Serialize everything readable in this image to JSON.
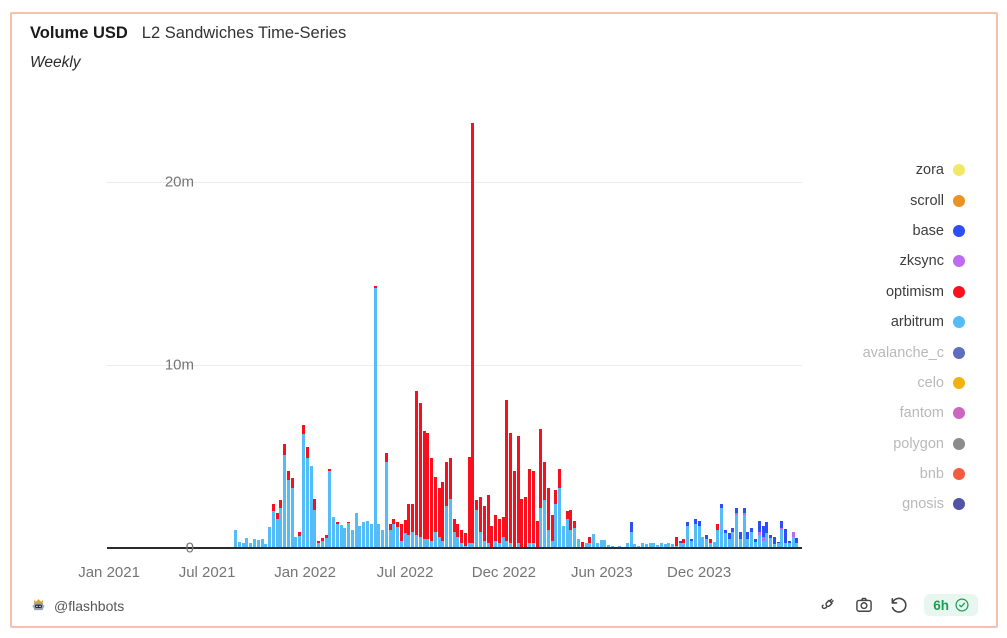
{
  "card": {
    "title_metric": "Volume USD",
    "title": "L2 Sandwiches Time-Series",
    "subtitle": "Weekly",
    "border_color": "#f8bfae"
  },
  "footer": {
    "author": "@flashbots",
    "badge_label": "6h",
    "badge_color": "#1f9d55",
    "badge_bg": "#e7f6ee",
    "tool_icons": [
      "plug-icon",
      "camera-icon",
      "history-icon"
    ]
  },
  "legend": {
    "position": "right",
    "items": [
      {
        "label": "zora",
        "color": "#f2e866",
        "active": true
      },
      {
        "label": "scroll",
        "color": "#eb9226",
        "active": true
      },
      {
        "label": "base",
        "color": "#2d4ef5",
        "active": true
      },
      {
        "label": "zksync",
        "color": "#bd6cf0",
        "active": true
      },
      {
        "label": "optimism",
        "color": "#f8101f",
        "active": true
      },
      {
        "label": "arbitrum",
        "color": "#54bdf7",
        "active": true
      },
      {
        "label": "avalanche_c",
        "color": "#5f6dbe",
        "active": false
      },
      {
        "label": "celo",
        "color": "#eeb30c",
        "active": false
      },
      {
        "label": "fantom",
        "color": "#cb67c0",
        "active": false
      },
      {
        "label": "polygon",
        "color": "#8c8c8c",
        "active": false
      },
      {
        "label": "bnb",
        "color": "#f25b40",
        "active": false
      },
      {
        "label": "gnosis",
        "color": "#5054a5",
        "active": false
      }
    ]
  },
  "chart_data": {
    "type": "bar",
    "stacked": true,
    "title": "Volume USD L2 Sandwiches Time-Series",
    "granularity": "Weekly",
    "y_unit": "USD millions",
    "ylim": [
      0,
      23.8
    ],
    "grid": "horizontal",
    "legend_position": "right",
    "y_ticks": [
      {
        "label": "0",
        "value": 0
      },
      {
        "label": "10m",
        "value": 10
      },
      {
        "label": "20m",
        "value": 20
      }
    ],
    "x_ticks": [
      {
        "label": "Jan 2021",
        "pos": 0.003
      },
      {
        "label": "Jul 2021",
        "pos": 0.144
      },
      {
        "label": "Jan 2022",
        "pos": 0.285
      },
      {
        "label": "Jul 2022",
        "pos": 0.429
      },
      {
        "label": "Dec 2022",
        "pos": 0.571
      },
      {
        "label": "Jun 2023",
        "pos": 0.712
      },
      {
        "label": "Dec 2023",
        "pos": 0.852
      }
    ],
    "first_bar_pos": 0.183,
    "bar_step": 0.00542,
    "series_order": [
      "arbitrum",
      "optimism",
      "zksync",
      "base"
    ],
    "series_colors": {
      "arbitrum": "#54bdf7",
      "optimism": "#f8101f",
      "zksync": "#bd6cf0",
      "base": "#2d4ef5"
    },
    "weeks_note": "weekly stacked volumes in USD millions, order [arbitrum, optimism, zksync, base]",
    "weeks": [
      [
        1.0,
        0,
        0,
        0
      ],
      [
        0.35,
        0,
        0,
        0
      ],
      [
        0.3,
        0,
        0,
        0
      ],
      [
        0.55,
        0,
        0,
        0
      ],
      [
        0.25,
        0,
        0,
        0
      ],
      [
        0.5,
        0,
        0,
        0
      ],
      [
        0.45,
        0,
        0,
        0
      ],
      [
        0.5,
        0,
        0,
        0
      ],
      [
        0.2,
        0,
        0,
        0
      ],
      [
        1.15,
        0,
        0,
        0
      ],
      [
        2.0,
        0.4,
        0,
        0
      ],
      [
        1.6,
        0.3,
        0,
        0
      ],
      [
        2.2,
        0.4,
        0,
        0
      ],
      [
        5.1,
        0.6,
        0,
        0
      ],
      [
        3.7,
        0.5,
        0,
        0
      ],
      [
        3.3,
        0.5,
        0,
        0
      ],
      [
        0.6,
        0,
        0,
        0
      ],
      [
        0.65,
        0.25,
        0,
        0
      ],
      [
        6.25,
        0.45,
        0,
        0
      ],
      [
        4.9,
        0.6,
        0,
        0
      ],
      [
        4.5,
        0,
        0,
        0
      ],
      [
        2.1,
        0.6,
        0,
        0
      ],
      [
        0.25,
        0.15,
        0,
        0
      ],
      [
        0.4,
        0.15,
        0,
        0
      ],
      [
        0.55,
        0.15,
        0,
        0
      ],
      [
        4.2,
        0.1,
        0,
        0
      ],
      [
        1.7,
        0,
        0,
        0
      ],
      [
        1.3,
        0.15,
        0,
        0
      ],
      [
        1.25,
        0,
        0,
        0
      ],
      [
        1.1,
        0,
        0,
        0
      ],
      [
        1.35,
        0.05,
        0,
        0
      ],
      [
        1.0,
        0,
        0,
        0
      ],
      [
        1.9,
        0,
        0,
        0
      ],
      [
        1.2,
        0,
        0,
        0
      ],
      [
        1.4,
        0,
        0,
        0
      ],
      [
        1.5,
        0,
        0,
        0
      ],
      [
        1.3,
        0,
        0,
        0
      ],
      [
        14.2,
        0.1,
        0,
        0
      ],
      [
        1.3,
        0,
        0,
        0
      ],
      [
        1.0,
        0,
        0,
        0
      ],
      [
        4.7,
        0.5,
        0,
        0
      ],
      [
        1.0,
        0.3,
        0,
        0
      ],
      [
        1.3,
        0.3,
        0,
        0
      ],
      [
        1.15,
        0.25,
        0,
        0
      ],
      [
        0.4,
        0.9,
        0,
        0
      ],
      [
        0.8,
        0.75,
        0,
        0
      ],
      [
        0.7,
        1.7,
        0,
        0
      ],
      [
        0.9,
        1.5,
        0,
        0
      ],
      [
        0.7,
        7.9,
        0,
        0
      ],
      [
        0.6,
        7.3,
        0,
        0
      ],
      [
        0.5,
        5.9,
        0,
        0
      ],
      [
        0.5,
        5.8,
        0,
        0
      ],
      [
        0.4,
        4.5,
        0,
        0
      ],
      [
        0.9,
        3.0,
        0,
        0
      ],
      [
        0.6,
        2.7,
        0,
        0
      ],
      [
        0.4,
        3.2,
        0,
        0
      ],
      [
        2.3,
        2.4,
        0,
        0
      ],
      [
        2.7,
        2.2,
        0,
        0
      ],
      [
        0.9,
        0.7,
        0,
        0
      ],
      [
        0.6,
        0.7,
        0,
        0
      ],
      [
        0.3,
        0.7,
        0,
        0
      ],
      [
        0.1,
        0.7,
        0,
        0
      ],
      [
        0.3,
        4.7,
        0,
        0
      ],
      [
        0.3,
        22.9,
        0,
        0
      ],
      [
        2.1,
        0.5,
        0,
        0
      ],
      [
        0.9,
        1.9,
        0,
        0
      ],
      [
        0.4,
        1.9,
        0,
        0
      ],
      [
        0.3,
        2.6,
        0,
        0
      ],
      [
        0.05,
        1.15,
        0,
        0
      ],
      [
        0.4,
        1.4,
        0,
        0
      ],
      [
        0.3,
        1.3,
        0,
        0
      ],
      [
        0.6,
        1.1,
        0,
        0
      ],
      [
        0.4,
        7.7,
        0,
        0
      ],
      [
        0.3,
        6.0,
        0,
        0
      ],
      [
        0,
        4.2,
        0,
        0
      ],
      [
        0.3,
        5.8,
        0,
        0
      ],
      [
        0,
        2.7,
        0,
        0
      ],
      [
        0,
        2.8,
        0,
        0
      ],
      [
        0.3,
        4.0,
        0,
        0
      ],
      [
        0.3,
        3.9,
        0,
        0
      ],
      [
        0,
        1.5,
        0,
        0
      ],
      [
        2.2,
        4.3,
        0,
        0
      ],
      [
        2.6,
        2.1,
        0,
        0
      ],
      [
        1.0,
        2.3,
        0,
        0
      ],
      [
        0.4,
        1.4,
        0,
        0
      ],
      [
        2.4,
        0.8,
        0,
        0
      ],
      [
        3.3,
        1.0,
        0,
        0
      ],
      [
        1.2,
        0,
        0,
        0
      ],
      [
        1.6,
        0.4,
        0,
        0
      ],
      [
        1.0,
        1.1,
        0,
        0
      ],
      [
        1.1,
        0.4,
        0,
        0
      ],
      [
        0.5,
        0,
        0,
        0
      ],
      [
        0,
        0.35,
        0,
        0
      ],
      [
        0.3,
        0,
        0,
        0
      ],
      [
        0.3,
        0.3,
        0,
        0
      ],
      [
        0.75,
        0,
        0,
        0
      ],
      [
        0.3,
        0,
        0,
        0
      ],
      [
        0.45,
        0,
        0,
        0
      ],
      [
        0.45,
        0,
        0,
        0
      ],
      [
        0.15,
        0,
        0,
        0
      ],
      [
        0.1,
        0,
        0,
        0
      ],
      [
        0,
        0,
        0,
        0
      ],
      [
        0.1,
        0,
        0,
        0
      ],
      [
        0.05,
        0,
        0,
        0
      ],
      [
        0.3,
        0,
        0,
        0
      ],
      [
        0.9,
        0,
        0,
        0.5
      ],
      [
        0.2,
        0,
        0,
        0
      ],
      [
        0.1,
        0,
        0,
        0
      ],
      [
        0.25,
        0,
        0,
        0.05
      ],
      [
        0.2,
        0,
        0,
        0
      ],
      [
        0.25,
        0,
        0,
        0
      ],
      [
        0.3,
        0,
        0,
        0
      ],
      [
        0.15,
        0,
        0,
        0
      ],
      [
        0.3,
        0,
        0,
        0
      ],
      [
        0.2,
        0,
        0,
        0
      ],
      [
        0.25,
        0,
        0,
        0
      ],
      [
        0.2,
        0,
        0,
        0
      ],
      [
        0.1,
        0.5,
        0,
        0
      ],
      [
        0.3,
        0,
        0,
        0.1
      ],
      [
        0.3,
        0.2,
        0,
        0
      ],
      [
        1.2,
        0,
        0,
        0.2
      ],
      [
        0.4,
        0,
        0,
        0.1
      ],
      [
        1.3,
        0,
        0,
        0.3
      ],
      [
        1.2,
        0,
        0,
        0.3
      ],
      [
        0.6,
        0,
        0,
        0
      ],
      [
        0.5,
        0,
        0,
        0.2
      ],
      [
        0.3,
        0.2,
        0,
        0
      ],
      [
        0.35,
        0,
        0,
        0
      ],
      [
        1.0,
        0.3,
        0,
        0
      ],
      [
        2.2,
        0,
        0,
        0.2
      ],
      [
        0.8,
        0,
        0,
        0.2
      ],
      [
        0.5,
        0,
        0,
        0.3
      ],
      [
        0.9,
        0,
        0,
        0.2
      ],
      [
        1.8,
        0,
        0.1,
        0.3
      ],
      [
        0.5,
        0,
        0,
        0.4
      ],
      [
        1.8,
        0,
        0.1,
        0.3
      ],
      [
        0.5,
        0,
        0,
        0.4
      ],
      [
        0.9,
        0,
        0,
        0.2
      ],
      [
        0.35,
        0,
        0,
        0.15
      ],
      [
        0.7,
        0,
        0.2,
        0.6
      ],
      [
        0.4,
        0,
        0.2,
        0.6
      ],
      [
        0.8,
        0,
        0,
        0.6
      ],
      [
        0.55,
        0,
        0,
        0.15
      ],
      [
        0.2,
        0,
        0,
        0.4
      ],
      [
        0.25,
        0,
        0,
        0.1
      ],
      [
        1.0,
        0,
        0.1,
        0.4
      ],
      [
        0.25,
        0,
        0,
        0.8
      ],
      [
        0.3,
        0,
        0,
        0.1
      ],
      [
        0.6,
        0,
        0.3,
        0
      ],
      [
        0.3,
        0,
        0,
        0.25
      ]
    ]
  }
}
